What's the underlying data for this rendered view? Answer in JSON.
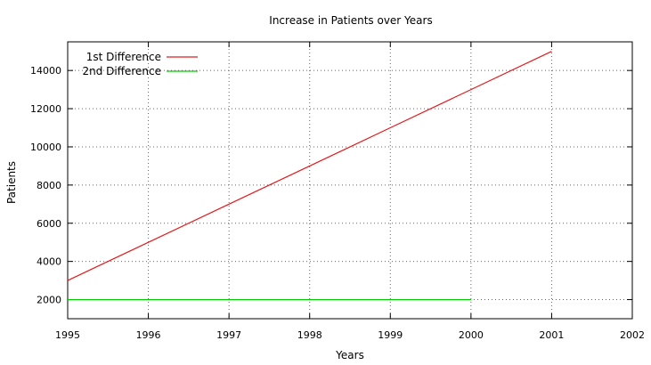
{
  "chart_data": {
    "type": "line",
    "title": "Increase in Patients over Years",
    "xlabel": "Years",
    "ylabel": "Patients",
    "xlim": [
      1995,
      2002
    ],
    "ylim": [
      1000,
      15500
    ],
    "x_ticks": [
      1995,
      1996,
      1997,
      1998,
      1999,
      2000,
      2001,
      2002
    ],
    "y_ticks": [
      2000,
      4000,
      6000,
      8000,
      10000,
      12000,
      14000
    ],
    "grid": true,
    "legend_position": "top-left",
    "series": [
      {
        "name": "1st Difference",
        "color": "#e41a1c",
        "x": [
          1995,
          1996,
          1997,
          1998,
          1999,
          2000,
          2001
        ],
        "y": [
          3000,
          5000,
          7000,
          9000,
          11000,
          13000,
          15000
        ]
      },
      {
        "name": "2nd Difference",
        "color": "#00cc00",
        "x": [
          1995,
          1996,
          1997,
          1998,
          1999,
          2000
        ],
        "y": [
          2000,
          2000,
          2000,
          2000,
          2000,
          2000
        ]
      }
    ]
  }
}
